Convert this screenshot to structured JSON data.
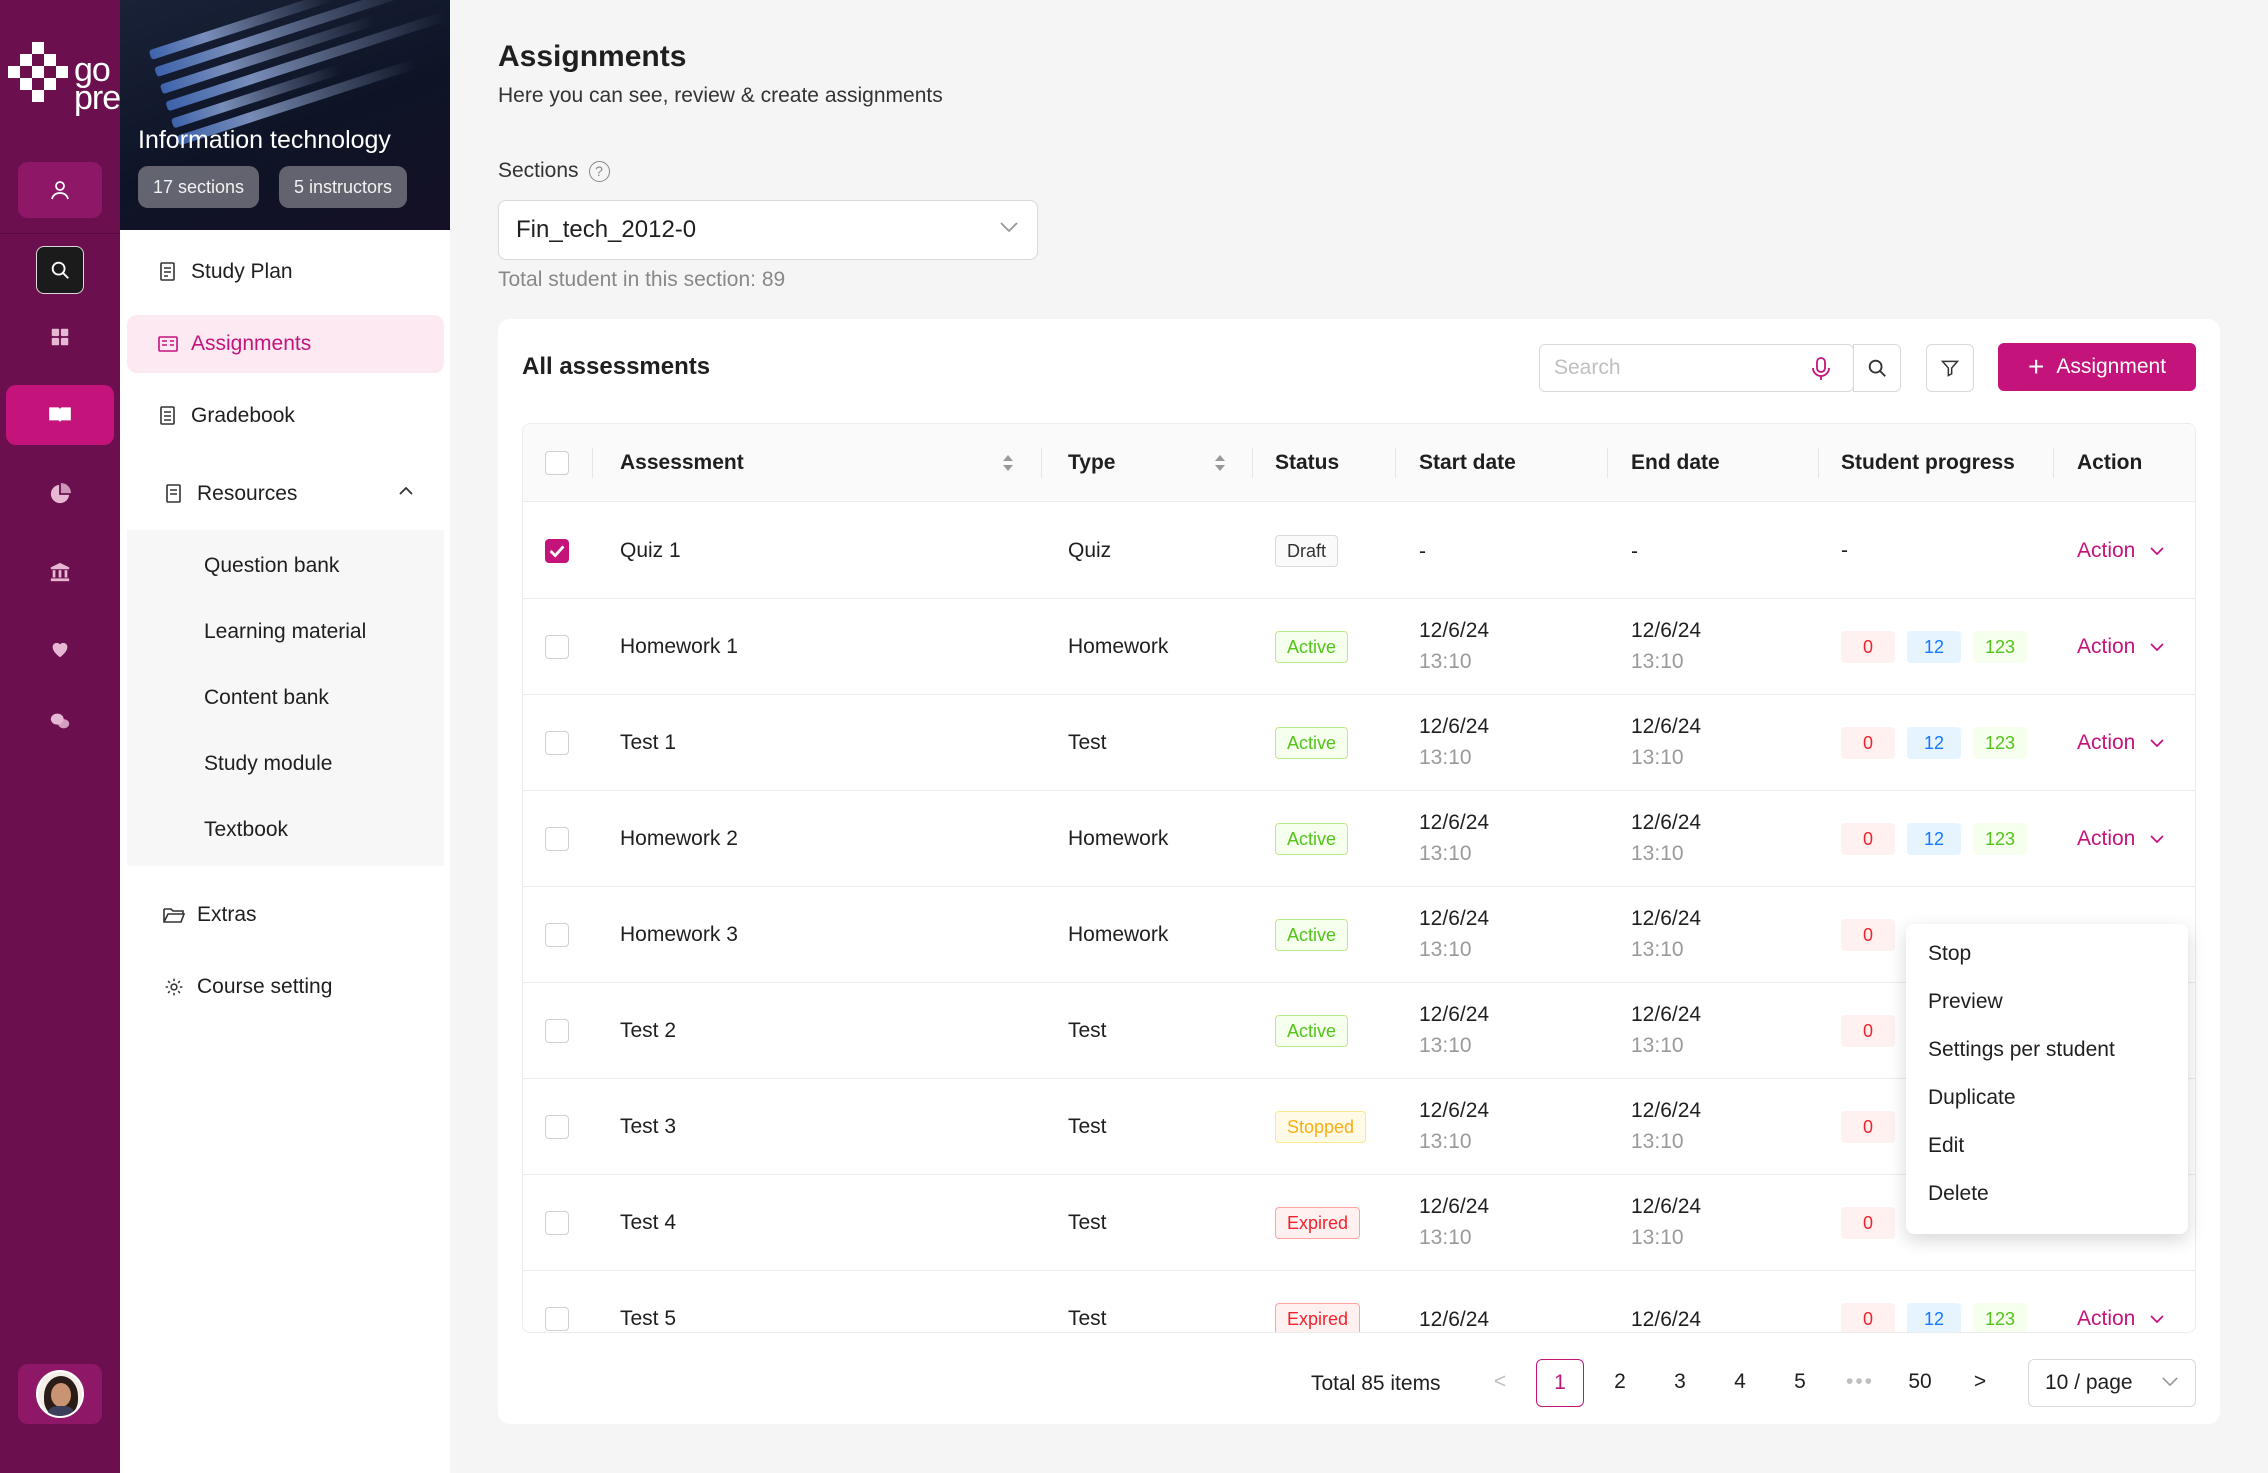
{
  "brand": {
    "logo_text_top": "go",
    "logo_text_bottom": "prep",
    "accent": "#c4147c",
    "rail_color": "#6b0f4f"
  },
  "rail": {
    "items": [
      {
        "icon": "user-icon"
      },
      {
        "icon": "search-icon"
      },
      {
        "icon": "dashboard-grid-icon"
      },
      {
        "icon": "book-open-icon"
      },
      {
        "icon": "pie-chart-icon"
      },
      {
        "icon": "bank-icon"
      },
      {
        "icon": "heart-icon"
      },
      {
        "icon": "chat-bubbles-icon"
      }
    ],
    "avatar": "user-avatar"
  },
  "course": {
    "title": "Information technology",
    "sections_chip": "17 sections",
    "instructors_chip": "5 instructors",
    "nav": {
      "study_plan": "Study Plan",
      "assignments": "Assignments",
      "gradebook": "Gradebook",
      "resources": "Resources",
      "resources_items": [
        "Question bank",
        "Learning material",
        "Content bank",
        "Study module",
        "Textbook"
      ],
      "extras": "Extras",
      "course_setting": "Course setting"
    }
  },
  "header": {
    "title": "Assignments",
    "subtitle": "Here you can see, review & create assignments",
    "sections_label": "Sections",
    "help_glyph": "?",
    "selected_section": "Fin_tech_2012-0",
    "total_students": "Total student in this section: 89"
  },
  "card": {
    "title": "All assessments",
    "search_placeholder": "Search",
    "add_button": "Assignment",
    "plus": "+"
  },
  "table": {
    "columns": [
      "Assessment",
      "Type",
      "Status",
      "Start date",
      "End date",
      "Student progress",
      "Action"
    ],
    "rows": [
      {
        "name": "Quiz 1",
        "type": "Quiz",
        "status": "Draft",
        "status_kind": "draft",
        "start_date": "-",
        "start_time": "",
        "end_date": "-",
        "end_time": "",
        "progress": "-",
        "p_red": "",
        "p_blue": "",
        "p_green": "",
        "action": "Action",
        "checked": true
      },
      {
        "name": "Homework 1",
        "type": "Homework",
        "status": "Active",
        "status_kind": "active",
        "start_date": "12/6/24",
        "start_time": "13:10",
        "end_date": "12/6/24",
        "end_time": "13:10",
        "progress": "",
        "p_red": "0",
        "p_blue": "12",
        "p_green": "123",
        "action": "Action",
        "checked": false
      },
      {
        "name": "Test 1",
        "type": "Test",
        "status": "Active",
        "status_kind": "active",
        "start_date": "12/6/24",
        "start_time": "13:10",
        "end_date": "12/6/24",
        "end_time": "13:10",
        "progress": "",
        "p_red": "0",
        "p_blue": "12",
        "p_green": "123",
        "action": "Action",
        "checked": false
      },
      {
        "name": "Homework 2",
        "type": "Homework",
        "status": "Active",
        "status_kind": "active",
        "start_date": "12/6/24",
        "start_time": "13:10",
        "end_date": "12/6/24",
        "end_time": "13:10",
        "progress": "",
        "p_red": "0",
        "p_blue": "12",
        "p_green": "123",
        "action": "Action",
        "checked": false
      },
      {
        "name": "Homework 3",
        "type": "Homework",
        "status": "Active",
        "status_kind": "active",
        "start_date": "12/6/24",
        "start_time": "13:10",
        "end_date": "12/6/24",
        "end_time": "13:10",
        "progress": "",
        "p_red": "0",
        "p_blue": "",
        "p_green": "",
        "action": "",
        "checked": false
      },
      {
        "name": "Test 2",
        "type": "Test",
        "status": "Active",
        "status_kind": "active",
        "start_date": "12/6/24",
        "start_time": "13:10",
        "end_date": "12/6/24",
        "end_time": "13:10",
        "progress": "",
        "p_red": "0",
        "p_blue": "",
        "p_green": "",
        "action": "",
        "checked": false
      },
      {
        "name": "Test 3",
        "type": "Test",
        "status": "Stopped",
        "status_kind": "stopped",
        "start_date": "12/6/24",
        "start_time": "13:10",
        "end_date": "12/6/24",
        "end_time": "13:10",
        "progress": "",
        "p_red": "0",
        "p_blue": "",
        "p_green": "",
        "action": "",
        "checked": false
      },
      {
        "name": "Test 4",
        "type": "Test",
        "status": "Expired",
        "status_kind": "expired",
        "start_date": "12/6/24",
        "start_time": "13:10",
        "end_date": "12/6/24",
        "end_time": "13:10",
        "progress": "",
        "p_red": "0",
        "p_blue": "",
        "p_green": "",
        "action": "",
        "checked": false
      },
      {
        "name": "Test 5",
        "type": "Test",
        "status": "Expired",
        "status_kind": "expired",
        "start_date": "12/6/24",
        "start_time": "",
        "end_date": "12/6/24",
        "end_time": "",
        "progress": "",
        "p_red": "0",
        "p_blue": "12",
        "p_green": "123",
        "action": "Action",
        "checked": false
      }
    ]
  },
  "action_menu": {
    "items": [
      "Stop",
      "Preview",
      "Settings per student",
      "Duplicate",
      "Edit",
      "Delete"
    ]
  },
  "pagination": {
    "total": "Total 85 items",
    "prev": "<",
    "next": ">",
    "pages": [
      "1",
      "2",
      "3",
      "4",
      "5",
      "•••",
      "50"
    ],
    "current": "1",
    "page_size": "10 / page"
  }
}
